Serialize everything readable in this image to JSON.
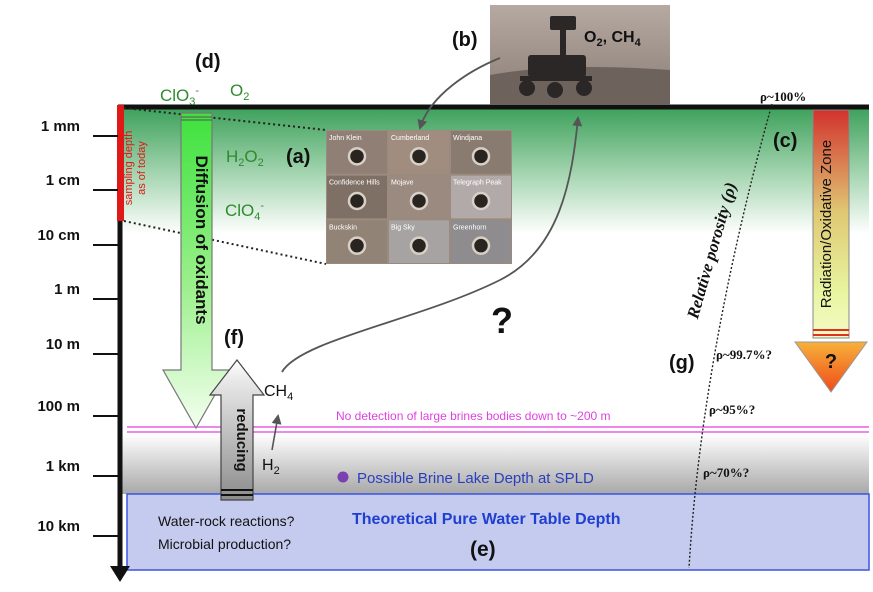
{
  "depth_axis": {
    "ticks": [
      "1 mm",
      "1 cm",
      "10 cm",
      "1 m",
      "10 m",
      "100 m",
      "1 km",
      "10 km"
    ]
  },
  "sampling": {
    "line1": "sampling depth",
    "line2": "as of today"
  },
  "panel_labels": {
    "a": "(a)",
    "b": "(b)",
    "c": "(c)",
    "d": "(d)",
    "e": "(e)",
    "f": "(f)",
    "g": "(g)"
  },
  "species": {
    "clo3": {
      "base": "ClO",
      "sub": "3",
      "sup": "-"
    },
    "o2": {
      "base": "O",
      "sub": "2"
    },
    "h2o2": {
      "base": "H",
      "sub1": "2",
      "mid": "O",
      "sub2": "2"
    },
    "clo4": {
      "base": "ClO",
      "sub": "4",
      "sup": "-"
    },
    "ch4": {
      "base": "CH",
      "sub": "4"
    },
    "h2": {
      "base": "H",
      "sub": "2"
    }
  },
  "rover": {
    "gases": {
      "o2": "O",
      "o2_sub": "2",
      "sep": ", ",
      "ch4": "CH",
      "ch4_sub": "4"
    }
  },
  "drill_holes": {
    "names": [
      "John Klein",
      "Cumberland",
      "Windjana",
      "Confidence Hills",
      "Mojave",
      "Telegraph Peak",
      "Buckskin",
      "Big Sky",
      "Greenhorn"
    ]
  },
  "arrows": {
    "diffusion": "Diffusion of oxidants",
    "reducing": "reducing",
    "radiation": "Radiation/Oxidative Zone",
    "radiation_unknown": "?"
  },
  "unknown_mark": "?",
  "porosity": {
    "label_prefix": "Relative porosity (",
    "label_symbol": "ρ",
    "label_suffix": ")",
    "values": [
      "ρ~100%",
      "ρ~99.7%?",
      "ρ~95%?",
      "ρ~70%?"
    ]
  },
  "brine_note": "No detection of large brines bodies down to ~200 m",
  "brine_lake": "Possible Brine Lake Depth at SPLD",
  "water_table": "Theoretical Pure Water Table Depth",
  "processes": {
    "line1": "Water-rock reactions?",
    "line2": "Microbial production?"
  },
  "colors": {
    "oxidant_green": "#2e8b2e",
    "sampling_red": "#e01818",
    "brine_magenta": "#e040e0",
    "water_blue": "#1f3fd1",
    "lake_purple": "#7a3fb0",
    "water_fill": "#c5cbef"
  }
}
